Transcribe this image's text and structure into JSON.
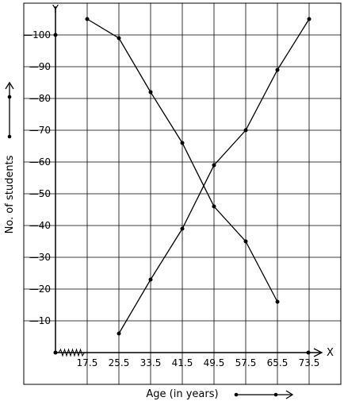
{
  "chart_data": {
    "type": "line",
    "title": "",
    "xlabel": "Age (in years)",
    "ylabel": "No. of students",
    "x_axis_letter": "X",
    "y_axis_letter": "Y",
    "x_ticks": [
      "17.5",
      "25.5",
      "33.5",
      "41.5",
      "49.5",
      "57.5",
      "65.5",
      "73.5"
    ],
    "y_ticks": [
      "10",
      "20",
      "30",
      "40",
      "50",
      "60",
      "70",
      "80",
      "90",
      "100"
    ],
    "xlim": [
      9.5,
      81.5
    ],
    "ylim": [
      0,
      110
    ],
    "grid": true,
    "series": [
      {
        "x": [
          17.5,
          25.5,
          33.5,
          41.5,
          49.5,
          57.5,
          65.5
        ],
        "values": [
          105,
          99,
          82,
          66,
          46,
          35,
          16
        ]
      },
      {
        "x": [
          25.5,
          33.5,
          41.5,
          49.5,
          57.5,
          65.5,
          73.5
        ],
        "values": [
          6,
          23,
          39,
          59,
          70,
          89,
          105
        ]
      }
    ]
  }
}
